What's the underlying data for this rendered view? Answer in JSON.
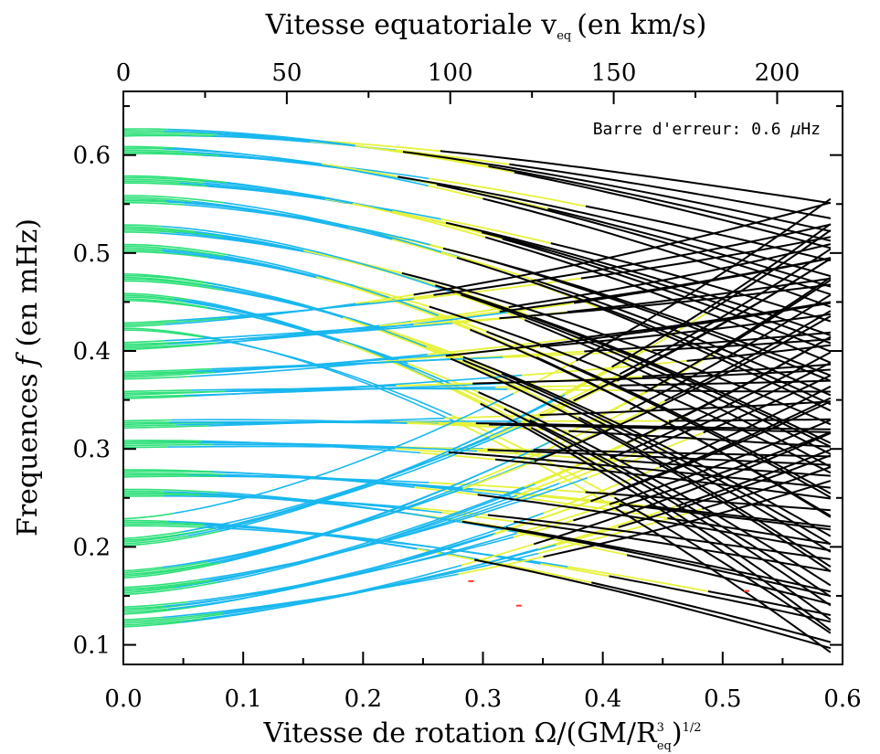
{
  "chart_data": {
    "type": "line",
    "title": "",
    "xlabel": {
      "main": "Vitesse de rotation Ω/(GM/R",
      "sub": "eq",
      "sup": "3",
      "tail": ")",
      "exp": "1/2"
    },
    "ylabel": {
      "main": "Frequences",
      "italic": "f",
      "tail": "(en mHz)"
    },
    "x2label": {
      "main": "Vitesse equatoriale v",
      "sub": "eq",
      "tail": "(en km/s)"
    },
    "xlim": [
      0.0,
      0.6
    ],
    "ylim": [
      0.08,
      0.665
    ],
    "x2lim": [
      0,
      220
    ],
    "x_ticks": [
      "0.0",
      "0.1",
      "0.2",
      "0.3",
      "0.4",
      "0.5",
      "0.6"
    ],
    "y_ticks": [
      "0.1",
      "0.2",
      "0.3",
      "0.4",
      "0.5",
      "0.6"
    ],
    "x2_ticks": [
      "0",
      "50",
      "100",
      "150",
      "200"
    ],
    "annotation": {
      "prefix": "Barre d'erreur: 0.6 ",
      "mu": "µ",
      "unit": "Hz"
    },
    "colors": {
      "green": "#2ee07a",
      "cyan": "#19b7ef",
      "yellow": "#e6f23a",
      "black": "#000000",
      "red": "#ff3b2f"
    },
    "mode_families": {
      "description_free": true,
      "x_max": 0.59,
      "cluster_centers_at_zero": [
        0.623,
        0.605,
        0.575,
        0.555,
        0.525,
        0.505,
        0.475,
        0.455,
        0.425,
        0.405,
        0.375,
        0.355,
        0.325,
        0.305,
        0.275,
        0.255,
        0.225,
        0.205,
        0.172,
        0.155,
        0.135,
        0.122
      ],
      "end_values_at_x_max": [
        0.557,
        0.535,
        0.52,
        0.51,
        0.5,
        0.49,
        0.478,
        0.468,
        0.455,
        0.445,
        0.432,
        0.42,
        0.41,
        0.4,
        0.388,
        0.378,
        0.366,
        0.356,
        0.344,
        0.334,
        0.322,
        0.312,
        0.3,
        0.29,
        0.28,
        0.27,
        0.258,
        0.248,
        0.236,
        0.226,
        0.214,
        0.204,
        0.192,
        0.182,
        0.17,
        0.16,
        0.15,
        0.14,
        0.128,
        0.118,
        0.108,
        0.098
      ]
    }
  }
}
